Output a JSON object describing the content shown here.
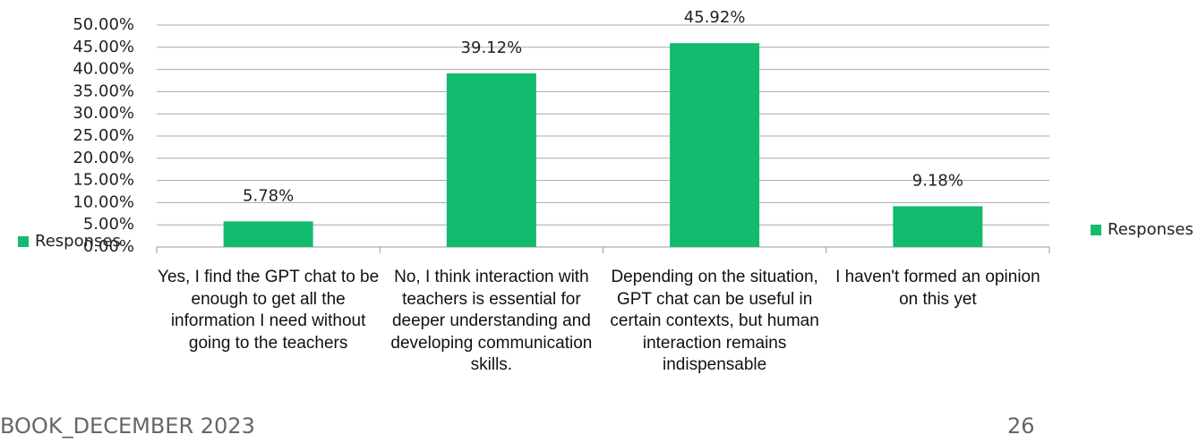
{
  "chart_data": {
    "type": "bar",
    "categories": [
      "Yes, I find the GPT chat to be enough to get all the information I need without going to the teachers",
      "No, I think interaction with teachers is essential for deeper understanding and developing communication skills.",
      "Depending on the situation, GPT chat can be useful in certain contexts, but human interaction remains indispensable",
      "I haven't formed an opinion on this yet"
    ],
    "series": [
      {
        "name": "Responses",
        "color": "#12bb6e",
        "values": [
          5.78,
          39.12,
          45.92,
          9.18
        ],
        "value_labels": [
          "5.78%",
          "39.12%",
          "45.92%",
          "9.18%"
        ]
      }
    ],
    "ylim": [
      0,
      50
    ],
    "yticks": [
      {
        "value": 0,
        "label": "0.00%"
      },
      {
        "value": 5,
        "label": "5.00%"
      },
      {
        "value": 10,
        "label": "10.00%"
      },
      {
        "value": 15,
        "label": "15.00%"
      },
      {
        "value": 20,
        "label": "20.00%"
      },
      {
        "value": 25,
        "label": "25.00%"
      },
      {
        "value": 30,
        "label": "30.00%"
      },
      {
        "value": 35,
        "label": "35.00%"
      },
      {
        "value": 40,
        "label": "40.00%"
      },
      {
        "value": 45,
        "label": "45.00%"
      },
      {
        "value": 50,
        "label": "50.00%"
      }
    ],
    "grid": true
  },
  "footer": {
    "left": "BOOK_DECEMBER 2023",
    "page": "26"
  }
}
